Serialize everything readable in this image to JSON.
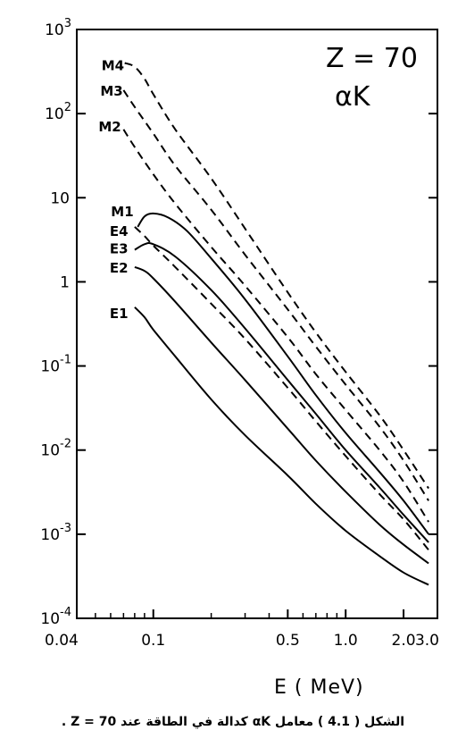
{
  "caption": "الشكل ( 4.1 ) معامل αK كدالة في الطاقة عند Z = 70 .",
  "chart_data": {
    "type": "line",
    "title": "",
    "xlabel": "E ( MeV)",
    "ylabel": "",
    "annotations": [
      "Z = 70",
      "αK"
    ],
    "x_scale": "log",
    "y_scale": "log",
    "xlim": [
      0.04,
      3.0
    ],
    "ylim": [
      0.0001,
      1000
    ],
    "x_ticks": [
      {
        "value": 0.04,
        "label": "0.04"
      },
      {
        "value": 0.1,
        "label": "0.1"
      },
      {
        "value": 0.5,
        "label": "0.5"
      },
      {
        "value": 1.0,
        "label": "1.0"
      },
      {
        "value": 2.0,
        "label": "2.0"
      },
      {
        "value": 3.0,
        "label": "3.0"
      }
    ],
    "y_ticks": [
      {
        "value": 0.0001,
        "base": "10",
        "exp": "-4"
      },
      {
        "value": 0.001,
        "base": "10",
        "exp": "-3"
      },
      {
        "value": 0.01,
        "base": "10",
        "exp": "-2"
      },
      {
        "value": 0.1,
        "base": "10",
        "exp": "-1"
      },
      {
        "value": 1,
        "base": "1",
        "exp": ""
      },
      {
        "value": 10,
        "base": "10",
        "exp": ""
      },
      {
        "value": 100,
        "base": "10",
        "exp": "2"
      },
      {
        "value": 1000,
        "base": "10",
        "exp": "3"
      }
    ],
    "grid": false,
    "series": [
      {
        "name": "M4",
        "style": "dashed",
        "points": [
          [
            0.071,
            400
          ],
          [
            0.08,
            360
          ],
          [
            0.09,
            260
          ],
          [
            0.1,
            170
          ],
          [
            0.13,
            65
          ],
          [
            0.2,
            17
          ],
          [
            0.3,
            4.3
          ],
          [
            0.5,
            0.75
          ],
          [
            0.7,
            0.25
          ],
          [
            1.0,
            0.085
          ],
          [
            1.5,
            0.026
          ],
          [
            2.0,
            0.01
          ],
          [
            2.7,
            0.0035
          ]
        ]
      },
      {
        "name": "M3",
        "style": "dashed",
        "points": [
          [
            0.07,
            190
          ],
          [
            0.08,
            120
          ],
          [
            0.1,
            58
          ],
          [
            0.13,
            24
          ],
          [
            0.2,
            7.2
          ],
          [
            0.3,
            2.1
          ],
          [
            0.5,
            0.47
          ],
          [
            0.7,
            0.17
          ],
          [
            1.0,
            0.06
          ],
          [
            1.5,
            0.019
          ],
          [
            2.0,
            0.0075
          ],
          [
            2.7,
            0.0025
          ]
        ]
      },
      {
        "name": "M2",
        "style": "dashed",
        "points": [
          [
            0.07,
            65
          ],
          [
            0.08,
            40
          ],
          [
            0.1,
            19
          ],
          [
            0.13,
            8.5
          ],
          [
            0.2,
            2.6
          ],
          [
            0.3,
            0.9
          ],
          [
            0.5,
            0.22
          ],
          [
            0.7,
            0.08
          ],
          [
            1.0,
            0.03
          ],
          [
            1.5,
            0.01
          ],
          [
            2.0,
            0.0042
          ],
          [
            2.7,
            0.0014
          ]
        ]
      },
      {
        "name": "M1",
        "style": "solid",
        "points": [
          [
            0.083,
            4.5
          ],
          [
            0.09,
            6.0
          ],
          [
            0.1,
            6.5
          ],
          [
            0.12,
            5.8
          ],
          [
            0.15,
            4.0
          ],
          [
            0.2,
            1.9
          ],
          [
            0.3,
            0.62
          ],
          [
            0.5,
            0.13
          ],
          [
            0.7,
            0.045
          ],
          [
            1.0,
            0.016
          ],
          [
            1.5,
            0.0055
          ],
          [
            2.0,
            0.0025
          ],
          [
            2.7,
            0.001
          ]
        ]
      },
      {
        "name": "E4",
        "style": "dashed",
        "points": [
          [
            0.08,
            4.5
          ],
          [
            0.09,
            3.5
          ],
          [
            0.1,
            2.7
          ],
          [
            0.13,
            1.5
          ],
          [
            0.2,
            0.55
          ],
          [
            0.3,
            0.21
          ],
          [
            0.5,
            0.055
          ],
          [
            0.7,
            0.022
          ],
          [
            1.0,
            0.0085
          ],
          [
            1.5,
            0.003
          ],
          [
            2.0,
            0.0015
          ],
          [
            2.7,
            0.00065
          ]
        ]
      },
      {
        "name": "E3",
        "style": "solid",
        "points": [
          [
            0.08,
            2.4
          ],
          [
            0.09,
            2.8
          ],
          [
            0.1,
            2.8
          ],
          [
            0.13,
            2.0
          ],
          [
            0.2,
            0.8
          ],
          [
            0.3,
            0.28
          ],
          [
            0.5,
            0.068
          ],
          [
            0.7,
            0.027
          ],
          [
            1.0,
            0.01
          ],
          [
            1.5,
            0.0036
          ],
          [
            2.0,
            0.0017
          ],
          [
            2.7,
            0.0008
          ]
        ]
      },
      {
        "name": "E2",
        "style": "solid",
        "points": [
          [
            0.08,
            1.5
          ],
          [
            0.09,
            1.35
          ],
          [
            0.1,
            1.1
          ],
          [
            0.13,
            0.58
          ],
          [
            0.2,
            0.19
          ],
          [
            0.3,
            0.068
          ],
          [
            0.5,
            0.018
          ],
          [
            0.7,
            0.0075
          ],
          [
            1.0,
            0.0032
          ],
          [
            1.5,
            0.0013
          ],
          [
            2.0,
            0.00075
          ],
          [
            2.7,
            0.00045
          ]
        ]
      },
      {
        "name": "E1",
        "style": "solid",
        "points": [
          [
            0.08,
            0.5
          ],
          [
            0.09,
            0.38
          ],
          [
            0.1,
            0.27
          ],
          [
            0.13,
            0.13
          ],
          [
            0.2,
            0.04
          ],
          [
            0.3,
            0.015
          ],
          [
            0.5,
            0.005
          ],
          [
            0.7,
            0.0023
          ],
          [
            1.0,
            0.0011
          ],
          [
            1.5,
            0.00055
          ],
          [
            2.0,
            0.00035
          ],
          [
            2.7,
            0.00025
          ]
        ]
      }
    ]
  }
}
